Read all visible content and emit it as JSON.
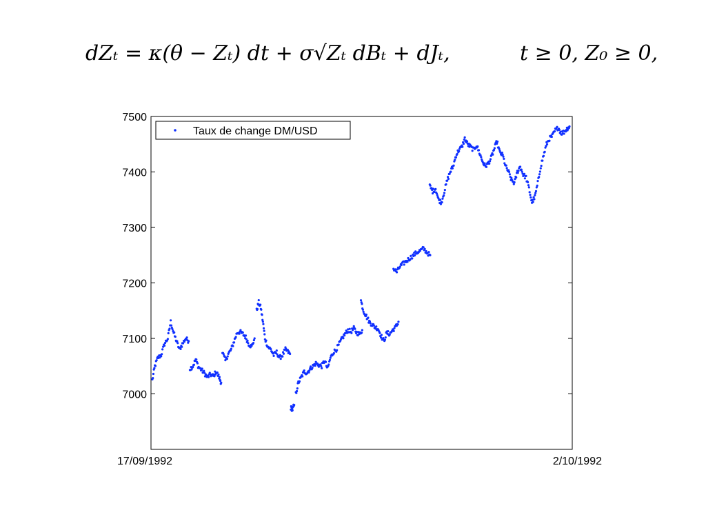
{
  "equation": {
    "left": "dZₜ = κ(θ − Zₜ) dt + σ√Zₜ dBₜ + dJₜ,",
    "right": "t ≥ 0, Z₀ ≥ 0,"
  },
  "chart_data": {
    "type": "scatter",
    "title": "",
    "xlabel": "",
    "ylabel": "",
    "x_tick_labels": [
      "17/09/1992",
      "2/10/1992"
    ],
    "y_ticks": [
      7000,
      7100,
      7200,
      7300,
      7400,
      7500
    ],
    "ylim": [
      6900,
      7500
    ],
    "legend": {
      "label": "Taux de change DM/USD",
      "placement": "top-left"
    },
    "grid": false,
    "point_color": "#1030ff",
    "segments": [
      {
        "x": [
          0.0,
          0.006,
          0.013,
          0.021,
          0.029,
          0.037,
          0.044,
          0.051,
          0.058,
          0.065,
          0.072,
          0.08,
          0.087
        ],
        "y": [
          7025,
          7050,
          7065,
          7070,
          7090,
          7100,
          7130,
          7110,
          7095,
          7080,
          7090,
          7100,
          7095
        ]
      },
      {
        "x": [
          0.09,
          0.097,
          0.104,
          0.111,
          0.118,
          0.125,
          0.132,
          0.139,
          0.146,
          0.153,
          0.16,
          0.165
        ],
        "y": [
          7045,
          7050,
          7062,
          7048,
          7043,
          7037,
          7030,
          7035,
          7032,
          7040,
          7030,
          7020
        ]
      },
      {
        "x": [
          0.168,
          0.175,
          0.182,
          0.189,
          0.196,
          0.203,
          0.21,
          0.217,
          0.224,
          0.231,
          0.238,
          0.245
        ],
        "y": [
          7075,
          7060,
          7072,
          7080,
          7095,
          7110,
          7112,
          7108,
          7102,
          7090,
          7085,
          7100
        ]
      },
      {
        "x": [
          0.25,
          0.255,
          0.26,
          0.265,
          0.27,
          0.277,
          0.284,
          0.291,
          0.298,
          0.305,
          0.312,
          0.319,
          0.326,
          0.33
        ],
        "y": [
          7150,
          7165,
          7155,
          7130,
          7100,
          7085,
          7080,
          7070,
          7075,
          7065,
          7070,
          7080,
          7075,
          7072
        ]
      },
      {
        "x": [
          0.332,
          0.336,
          0.34
        ],
        "y": [
          6975,
          6972,
          6980
        ]
      },
      {
        "x": [
          0.344,
          0.35,
          0.357,
          0.364,
          0.371,
          0.378,
          0.385,
          0.392,
          0.399,
          0.406,
          0.413,
          0.42,
          0.427,
          0.434,
          0.441,
          0.448,
          0.455,
          0.462,
          0.469,
          0.476,
          0.483,
          0.49,
          0.497,
          0.503
        ],
        "y": [
          7000,
          7020,
          7030,
          7040,
          7038,
          7045,
          7050,
          7055,
          7052,
          7050,
          7060,
          7045,
          7065,
          7075,
          7080,
          7090,
          7100,
          7108,
          7115,
          7112,
          7118,
          7110,
          7108,
          7115
        ]
      },
      {
        "x": [
          0.5,
          0.506,
          0.513,
          0.52,
          0.527,
          0.534,
          0.541,
          0.548,
          0.555,
          0.562,
          0.569,
          0.576,
          0.583,
          0.59
        ],
        "y": [
          7168,
          7150,
          7140,
          7130,
          7125,
          7120,
          7118,
          7105,
          7095,
          7110,
          7108,
          7115,
          7120,
          7130
        ]
      },
      {
        "x": [
          0.578,
          0.586,
          0.594,
          0.602,
          0.61,
          0.618,
          0.626,
          0.634,
          0.642,
          0.65,
          0.658,
          0.666
        ],
        "y": [
          7225,
          7220,
          7230,
          7235,
          7240,
          7245,
          7250,
          7255,
          7258,
          7262,
          7255,
          7250
        ]
      },
      {
        "x": [
          0.665,
          0.672,
          0.679,
          0.686,
          0.693,
          0.7,
          0.707,
          0.714,
          0.721,
          0.728,
          0.735,
          0.742,
          0.749,
          0.756,
          0.763,
          0.77,
          0.777,
          0.784,
          0.791,
          0.798,
          0.805,
          0.812,
          0.819,
          0.826,
          0.833,
          0.84,
          0.847,
          0.854,
          0.861,
          0.868,
          0.875,
          0.882,
          0.889,
          0.896,
          0.903,
          0.91,
          0.917,
          0.924,
          0.931,
          0.938,
          0.945,
          0.952,
          0.959,
          0.966,
          0.973,
          0.98,
          0.987,
          0.994,
          1.0
        ],
        "y": [
          7375,
          7365,
          7370,
          7350,
          7345,
          7365,
          7385,
          7400,
          7410,
          7430,
          7440,
          7445,
          7460,
          7450,
          7445,
          7440,
          7448,
          7435,
          7420,
          7410,
          7415,
          7425,
          7440,
          7455,
          7435,
          7430,
          7410,
          7400,
          7385,
          7380,
          7400,
          7410,
          7395,
          7390,
          7370,
          7345,
          7355,
          7380,
          7410,
          7430,
          7450,
          7460,
          7465,
          7475,
          7480,
          7470,
          7472,
          7478,
          7482
        ]
      }
    ]
  }
}
